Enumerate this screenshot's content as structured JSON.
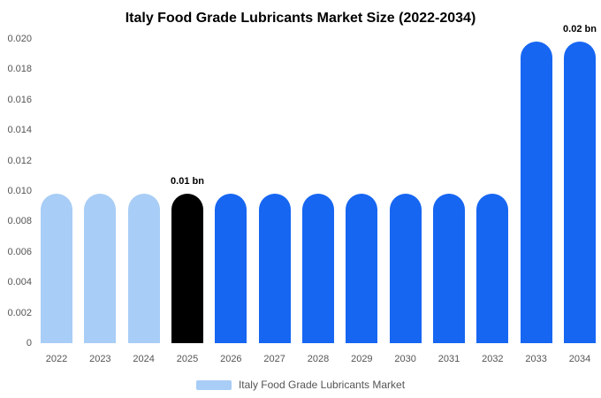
{
  "chart_data": {
    "type": "bar",
    "title": "Italy Food Grade Lubricants Market Size (2022-2034)",
    "categories": [
      "2022",
      "2023",
      "2024",
      "2025",
      "2026",
      "2027",
      "2028",
      "2029",
      "2030",
      "2031",
      "2032",
      "2033",
      "2034"
    ],
    "values": [
      0.0098,
      0.0098,
      0.0098,
      0.0098,
      0.0098,
      0.0098,
      0.0098,
      0.0098,
      0.0098,
      0.0098,
      0.0098,
      0.0198,
      0.0198
    ],
    "bar_colors": [
      "#a8cdf6",
      "#a8cdf6",
      "#a8cdf6",
      "#000000",
      "#1666f2",
      "#1666f2",
      "#1666f2",
      "#1666f2",
      "#1666f2",
      "#1666f2",
      "#1666f2",
      "#1666f2",
      "#1666f2"
    ],
    "xlabel": "",
    "ylabel": "",
    "ylim": [
      0,
      0.02
    ],
    "yticks": [
      "0",
      "0.002",
      "0.004",
      "0.006",
      "0.008",
      "0.010",
      "0.012",
      "0.014",
      "0.016",
      "0.018",
      "0.020"
    ],
    "grid": false,
    "legend_position": "bottom",
    "legend": [
      "Italy Food Grade Lubricants Market"
    ],
    "annotations": [
      {
        "category": "2025",
        "text": "0.01 bn"
      },
      {
        "category": "2034",
        "text": "0.02 bn"
      }
    ]
  },
  "legend": {
    "label": "Italy Food Grade Lubricants Market",
    "swatch_color": "#a8cdf6"
  },
  "colors": {
    "light_blue": "#a8cdf6",
    "blue": "#1666f2",
    "black": "#000000",
    "axis_text": "#555555"
  }
}
